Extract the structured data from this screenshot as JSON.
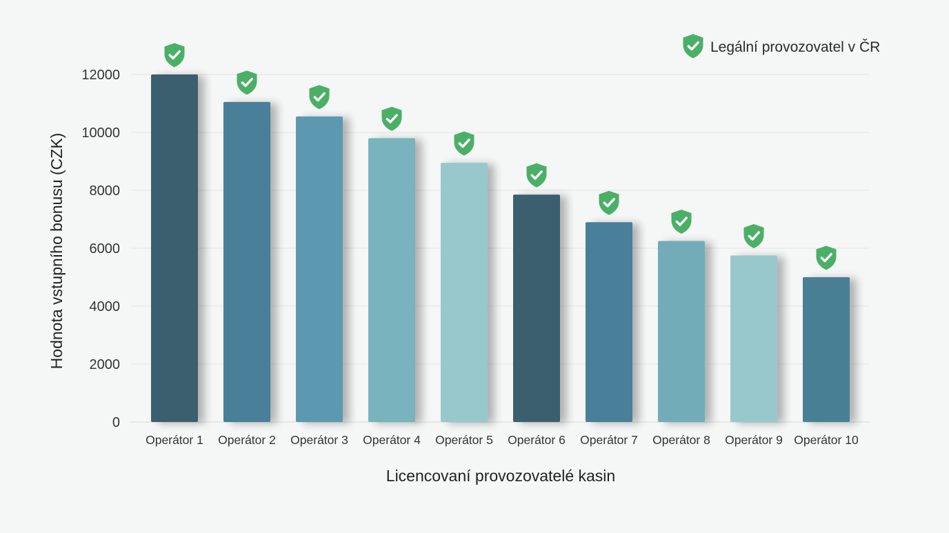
{
  "chart_data": {
    "type": "bar",
    "title": "",
    "xlabel": "Licencovaní provozovatelé kasin",
    "ylabel": "Hodnota vstupního bonusu (CZK)",
    "categories": [
      "Operátor 1",
      "Operátor 2",
      "Operátor 3",
      "Operátor 4",
      "Operátor 5",
      "Operátor 6",
      "Operátor 7",
      "Operátor 8",
      "Operátor 9",
      "Operátor 10"
    ],
    "values": [
      12000,
      11050,
      10550,
      9800,
      8950,
      7850,
      6900,
      6250,
      5750,
      5000
    ],
    "bar_colors": [
      "#3a5f6e",
      "#4a7f98",
      "#5b99b1",
      "#79b3bd",
      "#99c8cc",
      "#3a5f6e",
      "#4a7f98",
      "#72acb9",
      "#99c8cc",
      "#4a7f94"
    ],
    "yticks": [
      0,
      2000,
      4000,
      6000,
      8000,
      10000,
      12000
    ],
    "ylim": [
      0,
      12000
    ],
    "grid": true,
    "legend": {
      "label": "Legální provozovatel v ČR",
      "icon": "shield-check-icon",
      "placement": "top-right"
    },
    "marker_icon": "shield-check-icon",
    "marker_color": "#4caf68"
  }
}
